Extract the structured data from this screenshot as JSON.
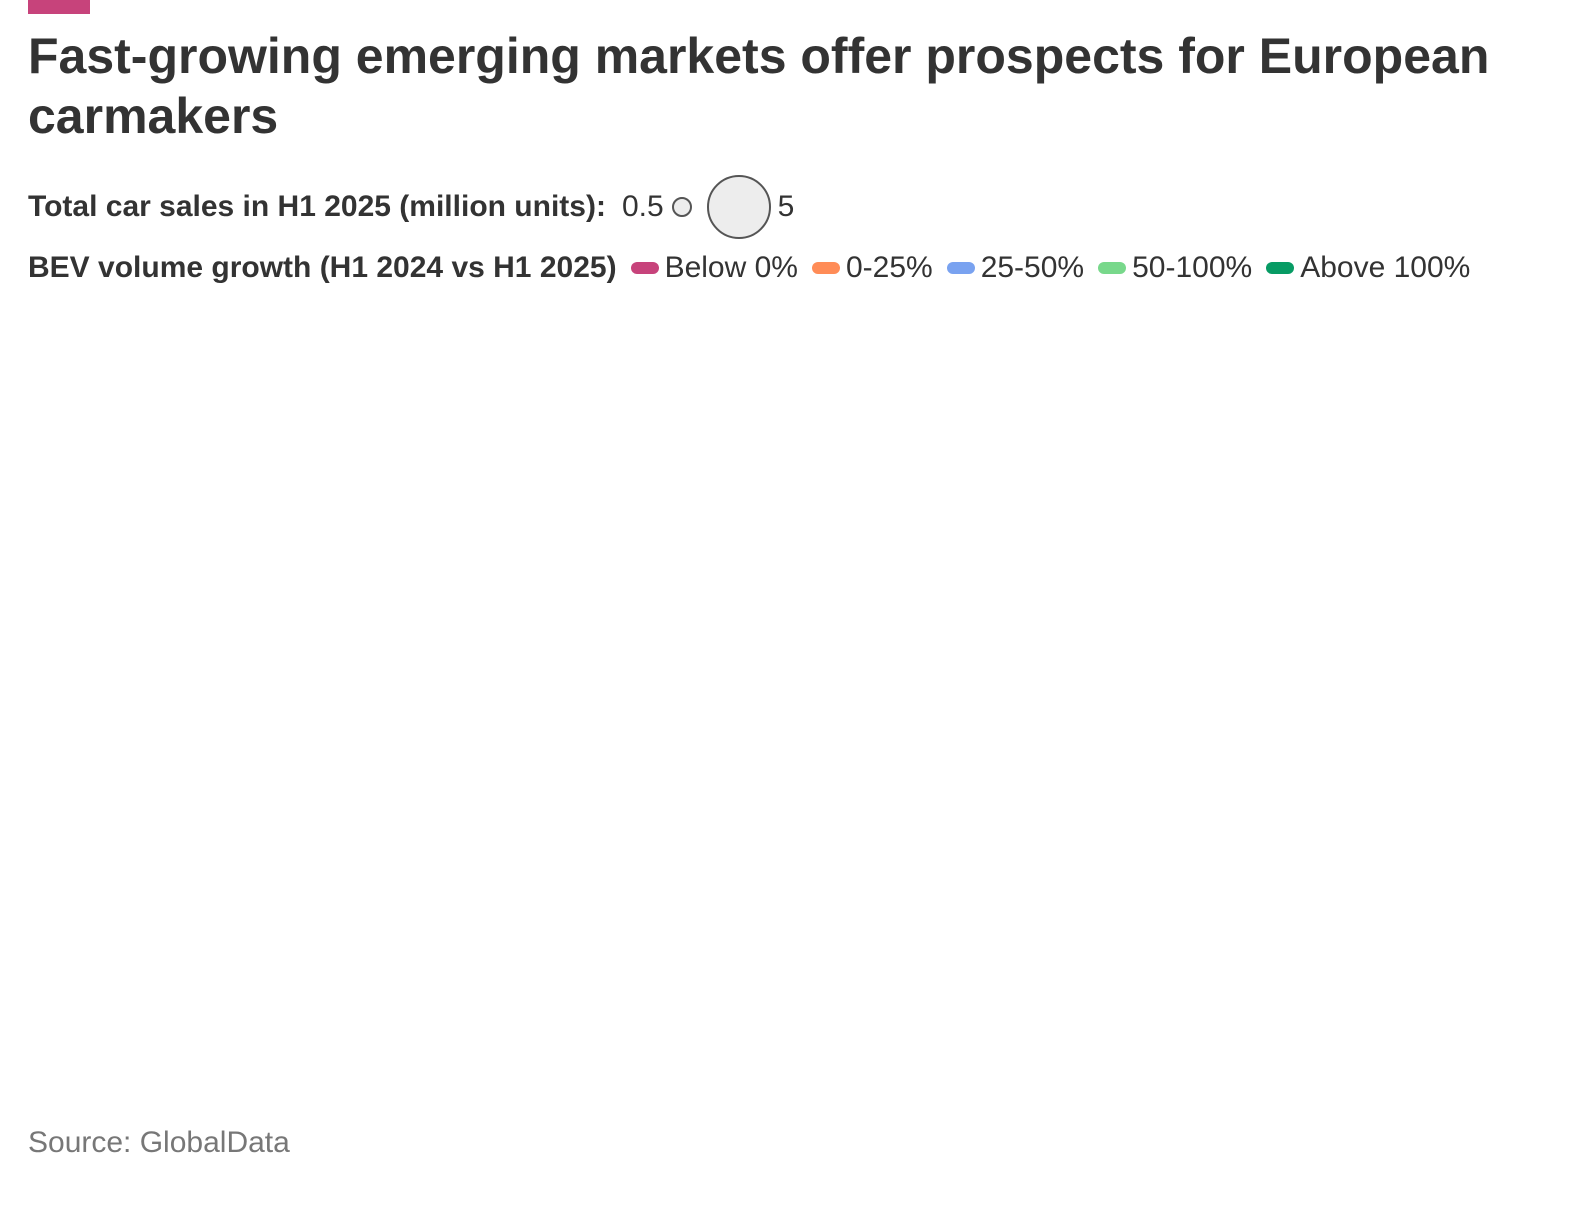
{
  "header": {
    "title": "Fast-growing emerging markets offer prospects for European carmakers",
    "accent_color": "#c7437b"
  },
  "chart_data": {
    "type": "scatter",
    "title": "Fast-growing emerging markets offer prospects for European carmakers",
    "size_legend": {
      "title": "Total car sales in H1 2025 (million units):",
      "min_label": "0.5",
      "max_label": "5",
      "min_value": 0.5,
      "max_value": 5
    },
    "color_legend": {
      "title": "BEV volume growth (H1 2024 vs H1 2025)",
      "items": [
        {
          "label": "Below 0%",
          "color": "#c7437b"
        },
        {
          "label": "0-25%",
          "color": "#ff8c57"
        },
        {
          "label": "25-50%",
          "color": "#79a2f0"
        },
        {
          "label": "50-100%",
          "color": "#78d88b"
        },
        {
          "label": "Above 100%",
          "color": "#079b64"
        }
      ]
    },
    "series": []
  },
  "footer": {
    "source": "Source: GlobalData"
  }
}
